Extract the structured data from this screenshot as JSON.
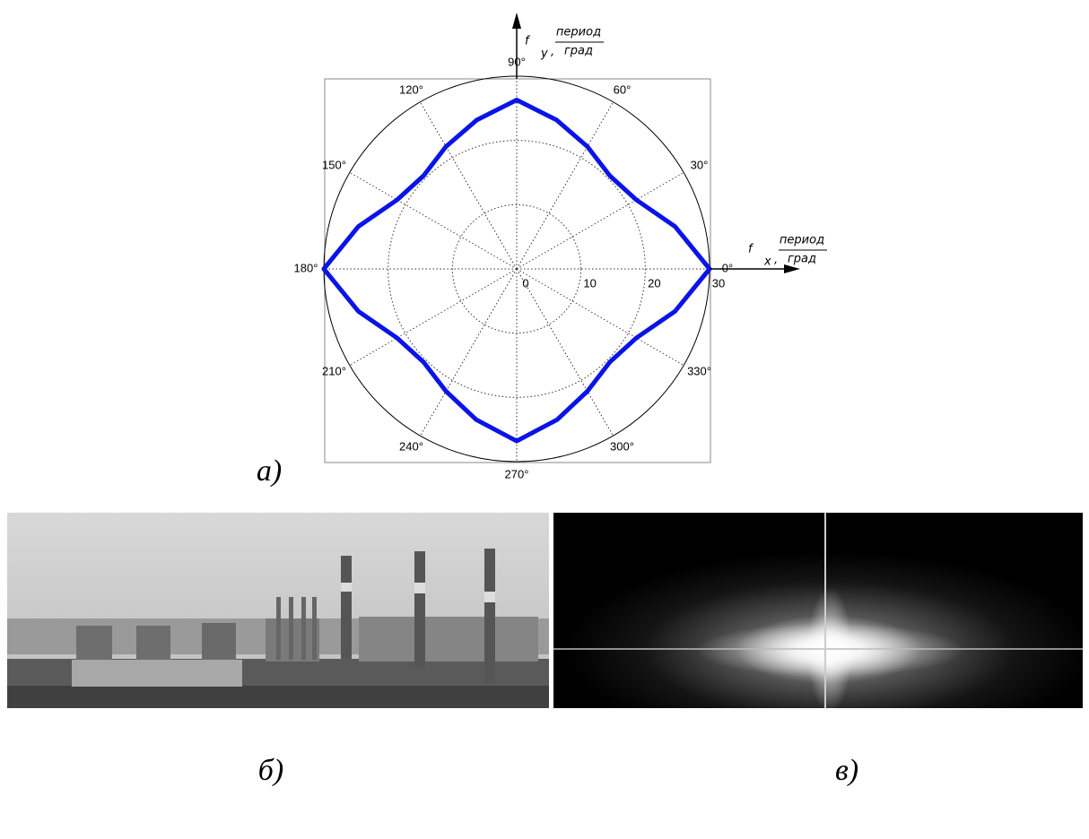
{
  "chart_data": {
    "type": "polar",
    "x_axis_label": {
      "symbol": "f",
      "subscript": "x",
      "separator": ",",
      "numerator": "период",
      "denominator": "град"
    },
    "y_axis_label": {
      "symbol": "f",
      "subscript": "y",
      "separator": ",",
      "numerator": "период",
      "denominator": "град"
    },
    "theta": [
      0,
      15,
      30,
      45,
      60,
      75,
      90,
      105,
      120,
      135,
      150,
      165,
      180,
      195,
      210,
      225,
      240,
      255,
      270,
      285,
      300,
      315,
      330,
      345
    ],
    "series": [
      {
        "color": "#0a14e6",
        "values": [
          30,
          25.5,
          21.5,
          20.5,
          22,
          24,
          26.3,
          24,
          22,
          20.5,
          21.5,
          25.5,
          30,
          25.5,
          21.5,
          20.5,
          22,
          24.3,
          26.8,
          24.3,
          22,
          20.5,
          21.5,
          25.5
        ]
      }
    ],
    "rlim": [
      0,
      30
    ],
    "rticks": [
      0,
      10,
      20,
      30
    ],
    "thetaticks": [
      {
        "value": 0,
        "label": "0°"
      },
      {
        "value": 30,
        "label": "30°"
      },
      {
        "value": 60,
        "label": "60°"
      },
      {
        "value": 90,
        "label": "90°"
      },
      {
        "value": 120,
        "label": "120°"
      },
      {
        "value": 150,
        "label": "150°"
      },
      {
        "value": 180,
        "label": "180°"
      },
      {
        "value": 210,
        "label": "210°"
      },
      {
        "value": 240,
        "label": "240°"
      },
      {
        "value": 270,
        "label": "270°"
      },
      {
        "value": 300,
        "label": "300°"
      },
      {
        "value": 330,
        "label": "330°"
      }
    ],
    "grid": true
  },
  "panel_labels": [
    "а)",
    "б)",
    "в)"
  ]
}
